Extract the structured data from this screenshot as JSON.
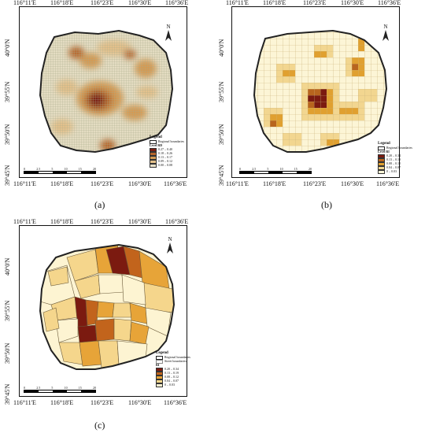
{
  "panels": [
    {
      "label": "(a)",
      "lon_labels": [
        "116°11'E",
        "116°18'E",
        "116°23'E",
        "116°30'E",
        "116°36'E"
      ],
      "lat_labels": [
        "40°0'N",
        "39°55'N",
        "39°50'N",
        "39°45'N"
      ],
      "north": "N",
      "legend_title": "Legend",
      "legend_items": [
        "Regional boundaries",
        "Level RD"
      ],
      "classes": [
        "0.27 – 0.40",
        "0.18 – 0.26",
        "0.13 – 0.17",
        "0.09 – 0.12",
        "0.00 – 0.08"
      ],
      "scale_labels": [
        "0",
        "2.5",
        "5",
        "10",
        "15",
        "20"
      ]
    },
    {
      "label": "(b)",
      "lon_labels": [
        "116°11'E",
        "116°18'E",
        "116°23'E",
        "116°30'E",
        "116°36'E"
      ],
      "lat_labels": [
        "40°0'N",
        "39°55'N",
        "39°50'N",
        "39°45'N"
      ],
      "north": "N",
      "legend_title": "Legend",
      "legend_items": [
        "Regional boundaries",
        "Level RI"
      ],
      "classes": [
        "0.20 – 0.34",
        "0.13 – 0.19",
        "0.08 – 0.12",
        "0.04 – 0.07",
        "0 – 0.03"
      ],
      "scale_labels": [
        "0",
        "2.5",
        "5",
        "10",
        "15",
        "20"
      ]
    },
    {
      "label": "(c)",
      "lon_labels": [
        "116°11'E",
        "116°18'E",
        "116°23'E",
        "116°30'E",
        "116°36'E"
      ],
      "lat_labels": [
        "40°0'N",
        "39°55'N",
        "39°50'N",
        "39°45'N"
      ],
      "north": "N",
      "legend_title": "Legend",
      "legend_items": [
        "Regional boundaries",
        "Street boundaries",
        "RI"
      ],
      "classes": [
        "0.20 – 0.34",
        "0.13 – 0.19",
        "0.08 – 0.12",
        "0.04 – 0.07",
        "0 – 0.03"
      ],
      "scale_labels": [
        "0",
        "2.5",
        "5",
        "10",
        "15",
        "20"
      ]
    }
  ],
  "colors": {
    "class_a": [
      "#7a1e12",
      "#b5652a",
      "#d49a52",
      "#e3c08a",
      "#e8e0c8"
    ],
    "class_b": [
      "#7b1a10",
      "#b8651e",
      "#e0a030",
      "#f2d690",
      "#fcf5d6"
    ],
    "class_c": [
      "#7b1a10",
      "#c2641c",
      "#e7a438",
      "#f5d68c",
      "#fdf4d2"
    ],
    "grid_a": "#a7ab8c",
    "grid_b": "#c9b27a",
    "outline": "#222222"
  }
}
